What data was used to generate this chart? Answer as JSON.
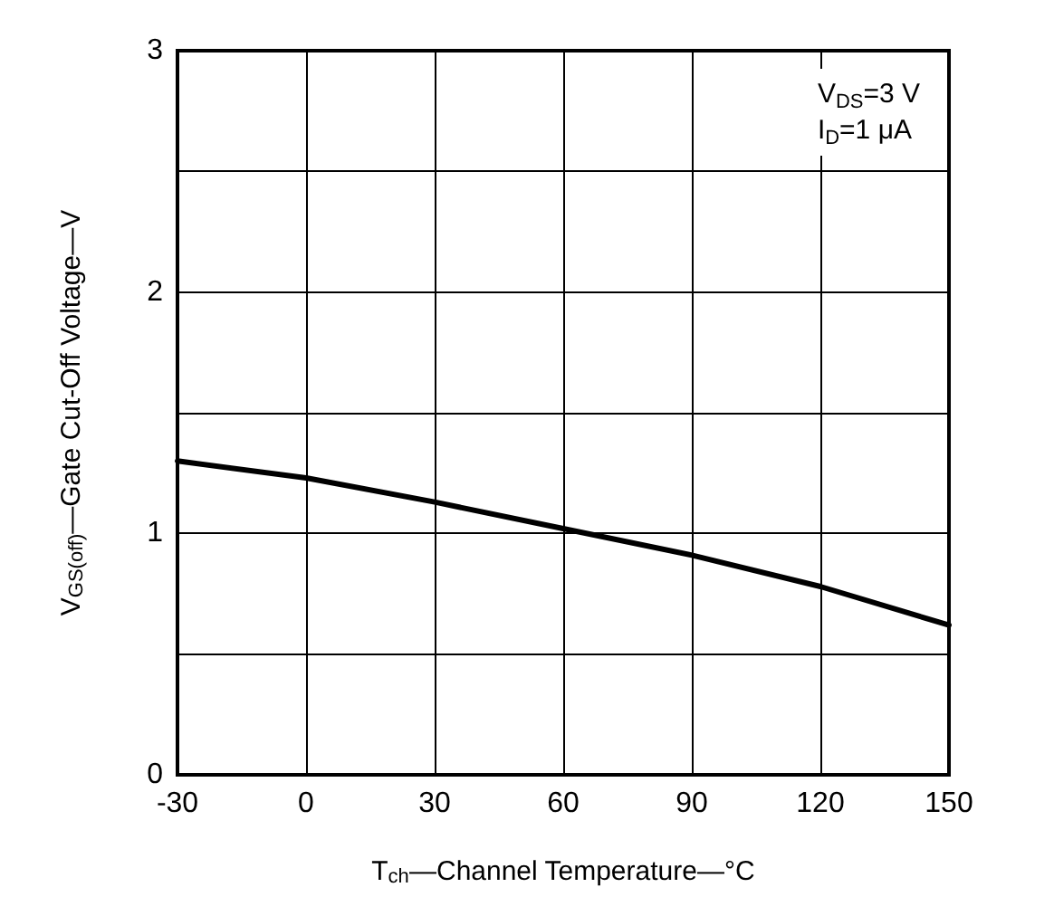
{
  "chart_data": {
    "type": "line",
    "xlabel": "T$_{ch}$—Channel Temperature—°C",
    "ylabel": "V$_{GS(off)}$—Gate Cut-Off Voltage—V",
    "annotations": [
      "V$_{DS}$=3 V",
      "I$_{D}$=1 μA"
    ],
    "x": [
      -30,
      0,
      30,
      60,
      90,
      120,
      150
    ],
    "series": [
      {
        "color": "#000000",
        "values": [
          1.3,
          1.23,
          1.13,
          1.02,
          0.91,
          0.78,
          0.62
        ]
      }
    ],
    "xlim": [
      -30,
      150
    ],
    "xticks": [
      -30,
      0,
      30,
      60,
      90,
      120,
      150
    ],
    "ylim": [
      0,
      3
    ],
    "yticks": [
      0,
      {
        "value": 0.5,
        "label": null
      },
      1,
      {
        "value": 1.5,
        "label": null
      },
      2,
      {
        "value": 2.5,
        "label": null
      },
      3
    ],
    "grid": true,
    "marker": "none",
    "line_style": "solid"
  }
}
